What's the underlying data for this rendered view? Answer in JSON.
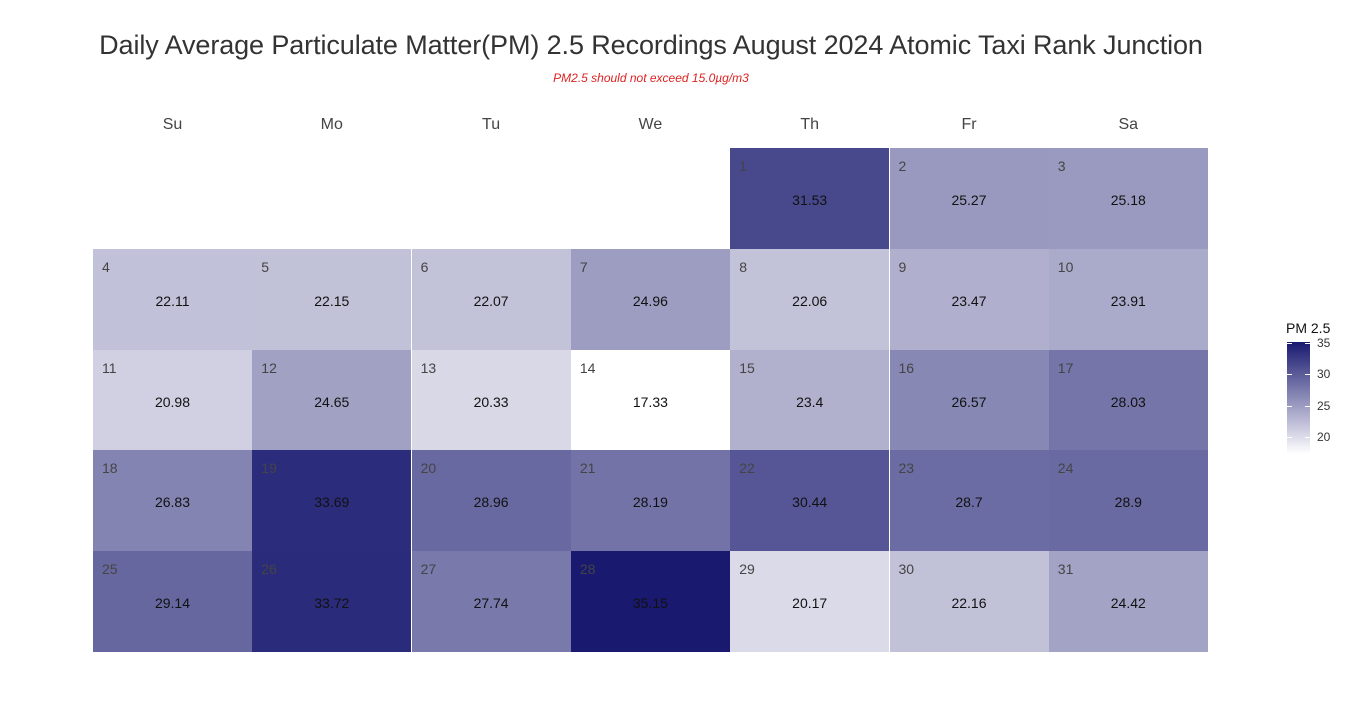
{
  "chart_data": {
    "type": "heatmap",
    "title": "Daily Average Particulate Matter(PM) 2.5 Recordings August 2024 Atomic Taxi Rank Junction",
    "subtitle": "PM2.5 should not exceed 15.0µg/m3",
    "weekdays": [
      "Su",
      "Mo",
      "Tu",
      "We",
      "Th",
      "Fr",
      "Sa"
    ],
    "first_weekday_index": 4,
    "days": [
      {
        "day": "1",
        "value": 31.53
      },
      {
        "day": "2",
        "value": 25.27
      },
      {
        "day": "3",
        "value": 25.18
      },
      {
        "day": "4",
        "value": 22.11
      },
      {
        "day": "5",
        "value": 22.15
      },
      {
        "day": "6",
        "value": 22.07
      },
      {
        "day": "7",
        "value": 24.96
      },
      {
        "day": "8",
        "value": 22.06
      },
      {
        "day": "9",
        "value": 23.47
      },
      {
        "day": "10",
        "value": 23.91
      },
      {
        "day": "11",
        "value": 20.98
      },
      {
        "day": "12",
        "value": 24.65
      },
      {
        "day": "13",
        "value": 20.33
      },
      {
        "day": "14",
        "value": 17.33
      },
      {
        "day": "15",
        "value": 23.4
      },
      {
        "day": "16",
        "value": 26.57
      },
      {
        "day": "17",
        "value": 28.03
      },
      {
        "day": "18",
        "value": 26.83
      },
      {
        "day": "19",
        "value": 33.69
      },
      {
        "day": "20",
        "value": 28.96
      },
      {
        "day": "21",
        "value": 28.19
      },
      {
        "day": "22",
        "value": 30.44
      },
      {
        "day": "23",
        "value": 28.7
      },
      {
        "day": "24",
        "value": 28.9
      },
      {
        "day": "25",
        "value": 29.14
      },
      {
        "day": "26",
        "value": 33.72
      },
      {
        "day": "27",
        "value": 27.74
      },
      {
        "day": "28",
        "value": 35.15
      },
      {
        "day": "29",
        "value": 20.17
      },
      {
        "day": "30",
        "value": 22.16
      },
      {
        "day": "31",
        "value": 24.42
      }
    ],
    "legend": {
      "title": "PM 2.5",
      "ticks": [
        "35",
        "30",
        "25",
        "20"
      ],
      "tick_values": [
        35,
        30,
        25,
        20
      ],
      "range": [
        17.33,
        35.15
      ]
    },
    "colors": {
      "low": "#ffffff",
      "high": "#191970"
    },
    "grid": false,
    "legend_position": "right"
  }
}
